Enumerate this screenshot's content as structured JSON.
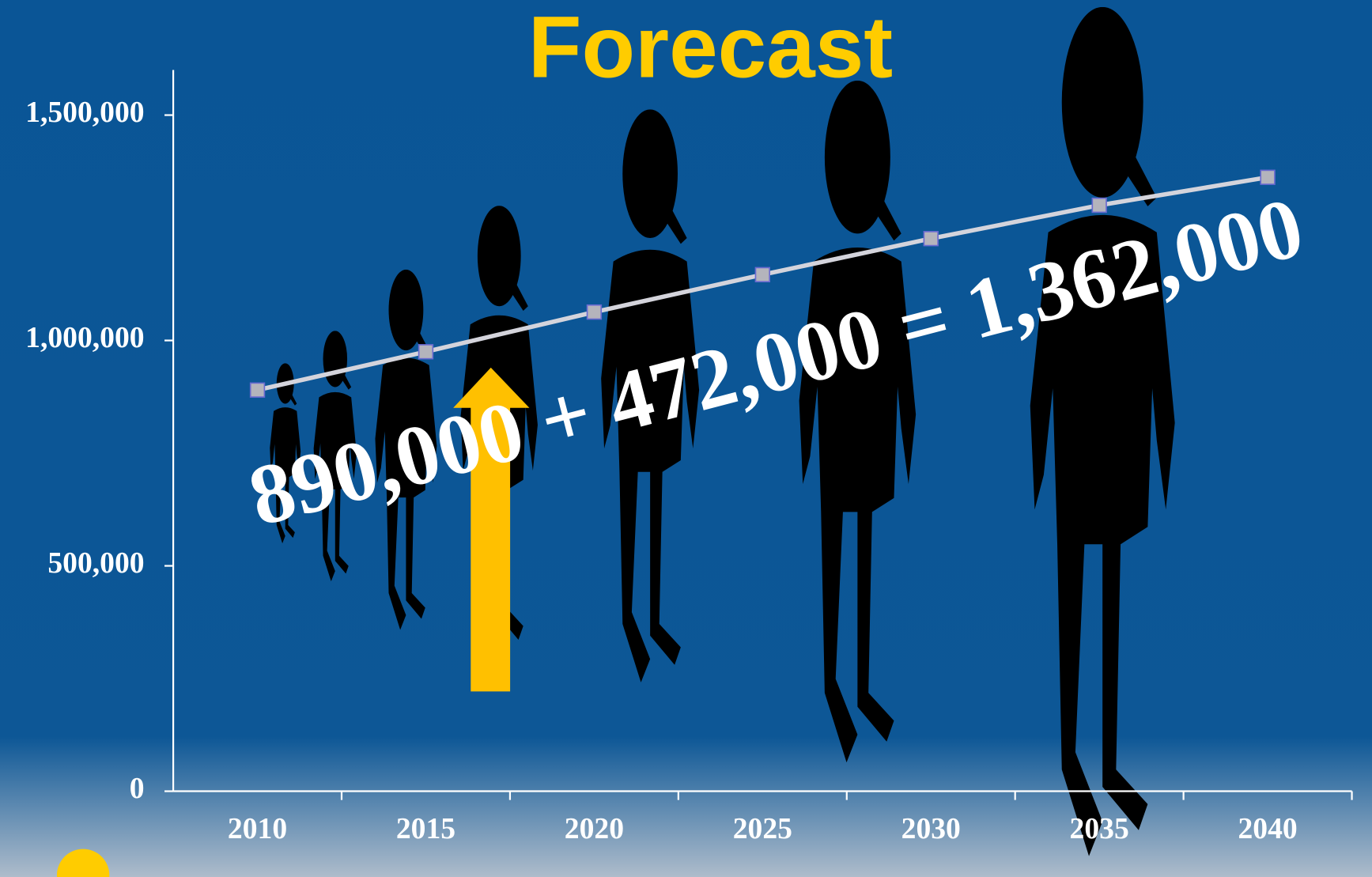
{
  "chart_data": {
    "type": "line",
    "title": "Forecast",
    "annotation": "890,000 + 472,000 = 1,362,000",
    "categories": [
      "2010",
      "2015",
      "2020",
      "2025",
      "2030",
      "2035",
      "2040"
    ],
    "values": [
      890000,
      975000,
      1063000,
      1146000,
      1226000,
      1300000,
      1362000
    ],
    "color": "#d4d4dc",
    "marker_color": "#b4b4bc",
    "marker_edge_color": "#6a6ad0",
    "ylim": [
      0,
      1600000
    ],
    "yticks": [
      {
        "value": 0,
        "label": "0"
      },
      {
        "value": 500000,
        "label": "500,000"
      },
      {
        "value": 1000000,
        "label": "1,000,000"
      },
      {
        "value": 1500000,
        "label": "1,500,000"
      }
    ],
    "grid": false
  }
}
